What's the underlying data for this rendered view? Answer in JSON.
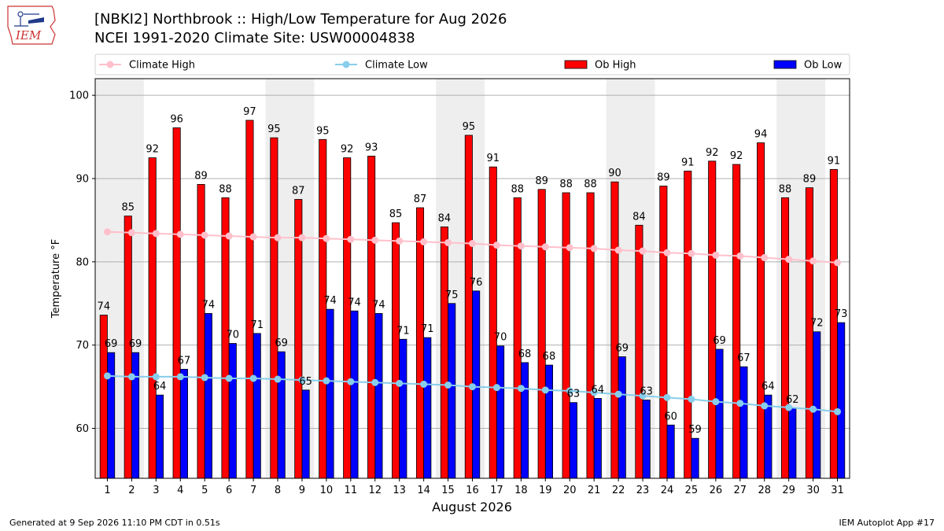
{
  "header": {
    "title_line1": "[NBKI2] Northbrook :: High/Low Temperature for Aug 2026",
    "title_line2": "NCEI 1991-2020 Climate Site: USW00004838",
    "logo_text": "IEM"
  },
  "footer": {
    "left": "Generated at 9 Sep 2026 11:10 PM CDT in 0.51s",
    "right": "IEM Autoplot App #17"
  },
  "chart_data": {
    "type": "bar",
    "xlabel": "August 2026",
    "ylabel": "Temperature °F",
    "ylim": [
      54,
      102
    ],
    "yticks": [
      60,
      70,
      80,
      90,
      100
    ],
    "grid": true,
    "legend_position": "top",
    "shaded_weekend_days": [
      1,
      2,
      8,
      9,
      15,
      16,
      22,
      23,
      29,
      30
    ],
    "categories": [
      "1",
      "2",
      "3",
      "4",
      "5",
      "6",
      "7",
      "8",
      "9",
      "10",
      "11",
      "12",
      "13",
      "14",
      "15",
      "16",
      "17",
      "18",
      "19",
      "20",
      "21",
      "22",
      "23",
      "24",
      "25",
      "26",
      "27",
      "28",
      "29",
      "30",
      "31"
    ],
    "series": [
      {
        "name": "Ob High",
        "kind": "bar",
        "color": "#ff0000",
        "values": [
          73.6,
          85.5,
          92.5,
          96.1,
          89.3,
          87.7,
          97.0,
          94.9,
          87.5,
          94.7,
          92.5,
          92.7,
          84.7,
          86.5,
          84.2,
          95.2,
          91.4,
          87.7,
          88.7,
          88.3,
          88.3,
          89.6,
          84.4,
          89.1,
          90.9,
          92.1,
          91.7,
          94.3,
          87.7,
          88.9,
          91.1
        ],
        "labels": [
          "74",
          "85",
          "92",
          "96",
          "89",
          "88",
          "97",
          "95",
          "87",
          "95",
          "92",
          "93",
          "85",
          "87",
          "84",
          "95",
          "91",
          "88",
          "89",
          "88",
          "88",
          "90",
          "84",
          "89",
          "91",
          "92",
          "92",
          "94",
          "88",
          "89",
          "91"
        ]
      },
      {
        "name": "Ob Low",
        "kind": "bar",
        "color": "#0000ff",
        "values": [
          69.1,
          69.1,
          64.0,
          67.1,
          73.8,
          70.2,
          71.4,
          69.2,
          64.6,
          74.3,
          74.1,
          73.8,
          70.7,
          70.9,
          75.0,
          76.5,
          69.9,
          67.9,
          67.6,
          63.1,
          63.6,
          68.6,
          63.4,
          60.4,
          58.8,
          69.5,
          67.4,
          64.0,
          62.4,
          71.6,
          72.7
        ],
        "labels": [
          "69",
          "69",
          "64",
          "67",
          "74",
          "70",
          "71",
          "69",
          "65",
          "74",
          "74",
          "74",
          "71",
          "71",
          "75",
          "76",
          "70",
          "68",
          "68",
          "63",
          "64",
          "69",
          "63",
          "60",
          "59",
          "69",
          "67",
          "64",
          "62",
          "72",
          "73"
        ]
      },
      {
        "name": "Climate High",
        "kind": "line",
        "color": "#ffc0cb",
        "values": [
          83.6,
          83.5,
          83.4,
          83.3,
          83.2,
          83.1,
          83.0,
          82.9,
          82.9,
          82.8,
          82.7,
          82.6,
          82.5,
          82.4,
          82.3,
          82.2,
          82.0,
          81.9,
          81.8,
          81.7,
          81.6,
          81.4,
          81.3,
          81.1,
          81.0,
          80.8,
          80.7,
          80.5,
          80.3,
          80.1,
          79.9
        ]
      },
      {
        "name": "Climate Low",
        "kind": "line",
        "color": "#87ceeb",
        "values": [
          66.3,
          66.2,
          66.2,
          66.2,
          66.1,
          66.0,
          66.0,
          65.9,
          65.8,
          65.7,
          65.6,
          65.5,
          65.4,
          65.3,
          65.2,
          65.0,
          64.9,
          64.8,
          64.6,
          64.5,
          64.3,
          64.1,
          63.9,
          63.7,
          63.5,
          63.2,
          63.0,
          62.7,
          62.5,
          62.3,
          62.0
        ]
      }
    ]
  }
}
